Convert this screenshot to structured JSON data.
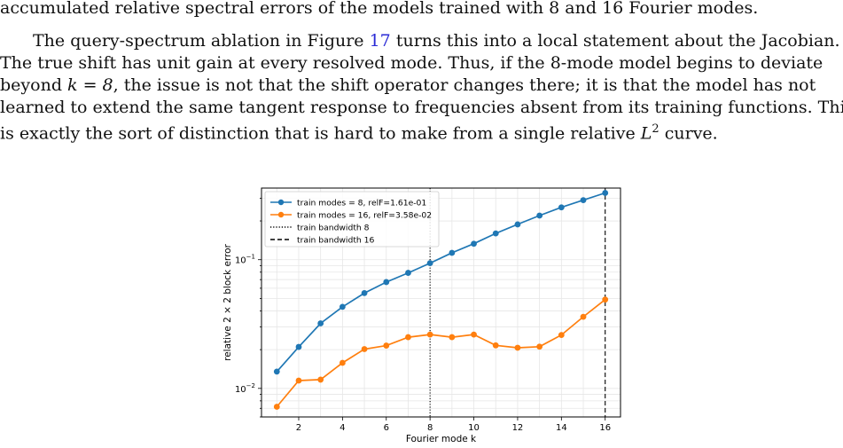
{
  "text": {
    "line0": "accumulated relative spectral errors of the models trained with 8 and 16 Fourier modes.",
    "line1a": "The query-spectrum ablation in Figure ",
    "fig_ref": "17",
    "line1b": " turns this into a local statement about the Jacobian.",
    "line2": "The true shift has unit gain at every resolved mode. Thus, if the 8-mode model begins to deviate",
    "line3a": "beyond ",
    "line3_math": "k = 8",
    "line3b": ", the issue is not that the shift operator changes there; it is that the model has not",
    "line4": "learned to extend the same tangent response to frequencies absent from its training functions. This",
    "line5a": "is exactly the sort of distinction that is hard to make from a single relative ",
    "line5_math": "L",
    "line5_sup": "2",
    "line5b": " curve."
  },
  "colors": {
    "series0": "#1f77b4",
    "series1": "#ff7f0e",
    "grid": "#e6e6e6",
    "ref": "#2b2bd6"
  },
  "chart_data": {
    "type": "line",
    "xlabel": "Fourier mode k",
    "ylabel": "relative 2 × 2 block error",
    "yscale": "log",
    "xlim": [
      0.3,
      16.7
    ],
    "ylim": [
      0.006,
      0.36
    ],
    "x_ticks": [
      2,
      4,
      6,
      8,
      10,
      12,
      14,
      16
    ],
    "y_ticks": [
      {
        "value": 0.01,
        "base": "10",
        "exp": "−2"
      },
      {
        "value": 0.1,
        "base": "10",
        "exp": "−1"
      }
    ],
    "grid": true,
    "legend_position": "top-left",
    "x": [
      1,
      2,
      3,
      4,
      5,
      6,
      7,
      8,
      9,
      10,
      11,
      12,
      13,
      14,
      15,
      16
    ],
    "series": [
      {
        "name": "train modes = 8, relF=1.61e-01",
        "values": [
          0.0135,
          0.021,
          0.032,
          0.043,
          0.055,
          0.067,
          0.079,
          0.094,
          0.113,
          0.133,
          0.16,
          0.188,
          0.22,
          0.255,
          0.29,
          0.33
        ]
      },
      {
        "name": "train modes = 16, relF=3.58e-02",
        "values": [
          0.0072,
          0.0115,
          0.0117,
          0.0158,
          0.0202,
          0.0215,
          0.025,
          0.0262,
          0.025,
          0.0262,
          0.0216,
          0.0207,
          0.0211,
          0.026,
          0.036,
          0.049
        ]
      }
    ],
    "vlines": [
      {
        "name": "train bandwidth 8",
        "x": 8,
        "style": "dotted"
      },
      {
        "name": "train bandwidth 16",
        "x": 16,
        "style": "dashed"
      }
    ]
  }
}
